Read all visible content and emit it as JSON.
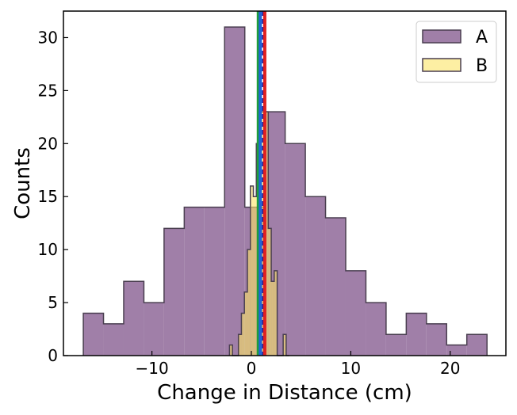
{
  "chart_data": {
    "type": "histogram",
    "xlabel": "Change in Distance (cm)",
    "ylabel": "Counts",
    "xlim": [
      -18.9,
      25.6
    ],
    "ylim": [
      0,
      32.5
    ],
    "xticks": [
      -10,
      0,
      10,
      20
    ],
    "xtick_labels": [
      "−10",
      "0",
      "10",
      "20"
    ],
    "yticks": [
      0,
      5,
      10,
      15,
      20,
      25,
      30
    ],
    "ytick_labels": [
      "0",
      "5",
      "10",
      "15",
      "20",
      "25",
      "30"
    ],
    "legend_position": "top-right",
    "series": [
      {
        "name": "A",
        "color": "#a07fa8",
        "edge_color": "#4a3f50",
        "opacity": 1.0,
        "bin_edges": [
          -16.9,
          -14.87,
          -12.84,
          -10.81,
          -8.78,
          -6.75,
          -4.72,
          -2.69,
          -0.66,
          1.37,
          3.4,
          5.43,
          7.46,
          9.49,
          11.52,
          13.55,
          15.58,
          17.61,
          19.64,
          21.67,
          23.7
        ],
        "counts": [
          4,
          3,
          7,
          5,
          12,
          14,
          14,
          31,
          14,
          23,
          20,
          15,
          13,
          8,
          5,
          2,
          4,
          3,
          1,
          2
        ]
      },
      {
        "name": "B",
        "color": "#fce565",
        "edge_color": "#4a3f50",
        "opacity": 0.6,
        "bin_edges": [
          -2.2,
          -1.9,
          -1.6,
          -1.3,
          -1.0,
          -0.7,
          -0.4,
          -0.1,
          0.2,
          0.5,
          0.8,
          1.1,
          1.4,
          1.7,
          2.0,
          2.3,
          2.6,
          2.9,
          3.2,
          3.5,
          3.8
        ],
        "counts": [
          1,
          0,
          0,
          2,
          4,
          6,
          10,
          16,
          15,
          20,
          23,
          23,
          23,
          12,
          7,
          8,
          0,
          0,
          2,
          0
        ]
      }
    ],
    "vertical_lines": [
      {
        "x": 0.7,
        "color": "#1f9e3a",
        "style": "solid"
      },
      {
        "x": 0.9,
        "color": "#1f64d6",
        "style": "solid"
      },
      {
        "x": 1.15,
        "color": "#1a1a9e",
        "style": "dashed"
      },
      {
        "x": 1.35,
        "color": "#e02020",
        "style": "solid"
      }
    ]
  }
}
